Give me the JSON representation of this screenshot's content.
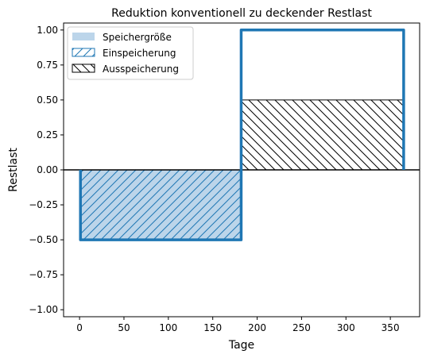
{
  "chart_data": {
    "type": "area",
    "title": "Reduktion konventionell zu deckender Restlast",
    "xlabel": "Tage",
    "ylabel": "Restlast",
    "xlim": [
      -18,
      383
    ],
    "ylim": [
      -1.05,
      1.05
    ],
    "xticks": [
      0,
      50,
      100,
      150,
      200,
      250,
      300,
      350
    ],
    "yticks": [
      -1.0,
      -0.75,
      -0.5,
      -0.25,
      0.0,
      0.25,
      0.5,
      0.75,
      1.0
    ],
    "ytick_labels": [
      "−1.00",
      "−0.75",
      "−0.50",
      "−0.25",
      "0.00",
      "0.25",
      "0.50",
      "0.75",
      "1.00"
    ],
    "grid": false,
    "legend_position": "upper-left",
    "restlast_line": {
      "x": [
        1,
        1,
        182,
        182,
        365,
        365
      ],
      "y": [
        0,
        -0.5,
        -0.5,
        1.0,
        1.0,
        0
      ]
    },
    "series": [
      {
        "name": "Speichergröße",
        "style": "fill",
        "color": "#bcd5ea",
        "x": [
          1,
          182
        ],
        "y0": -0.5,
        "y1": 0
      },
      {
        "name": "Einspeicherung",
        "style": "hatch-forward",
        "color": "#1f77b4",
        "x": [
          1,
          182
        ],
        "y0": -0.5,
        "y1": 0
      },
      {
        "name": "Ausspeicherung",
        "style": "hatch-back",
        "color": "#000000",
        "x": [
          182,
          365
        ],
        "y0": 0,
        "y1": 0.5
      }
    ],
    "zero_line": 0,
    "line_color": "#1f77b4"
  }
}
